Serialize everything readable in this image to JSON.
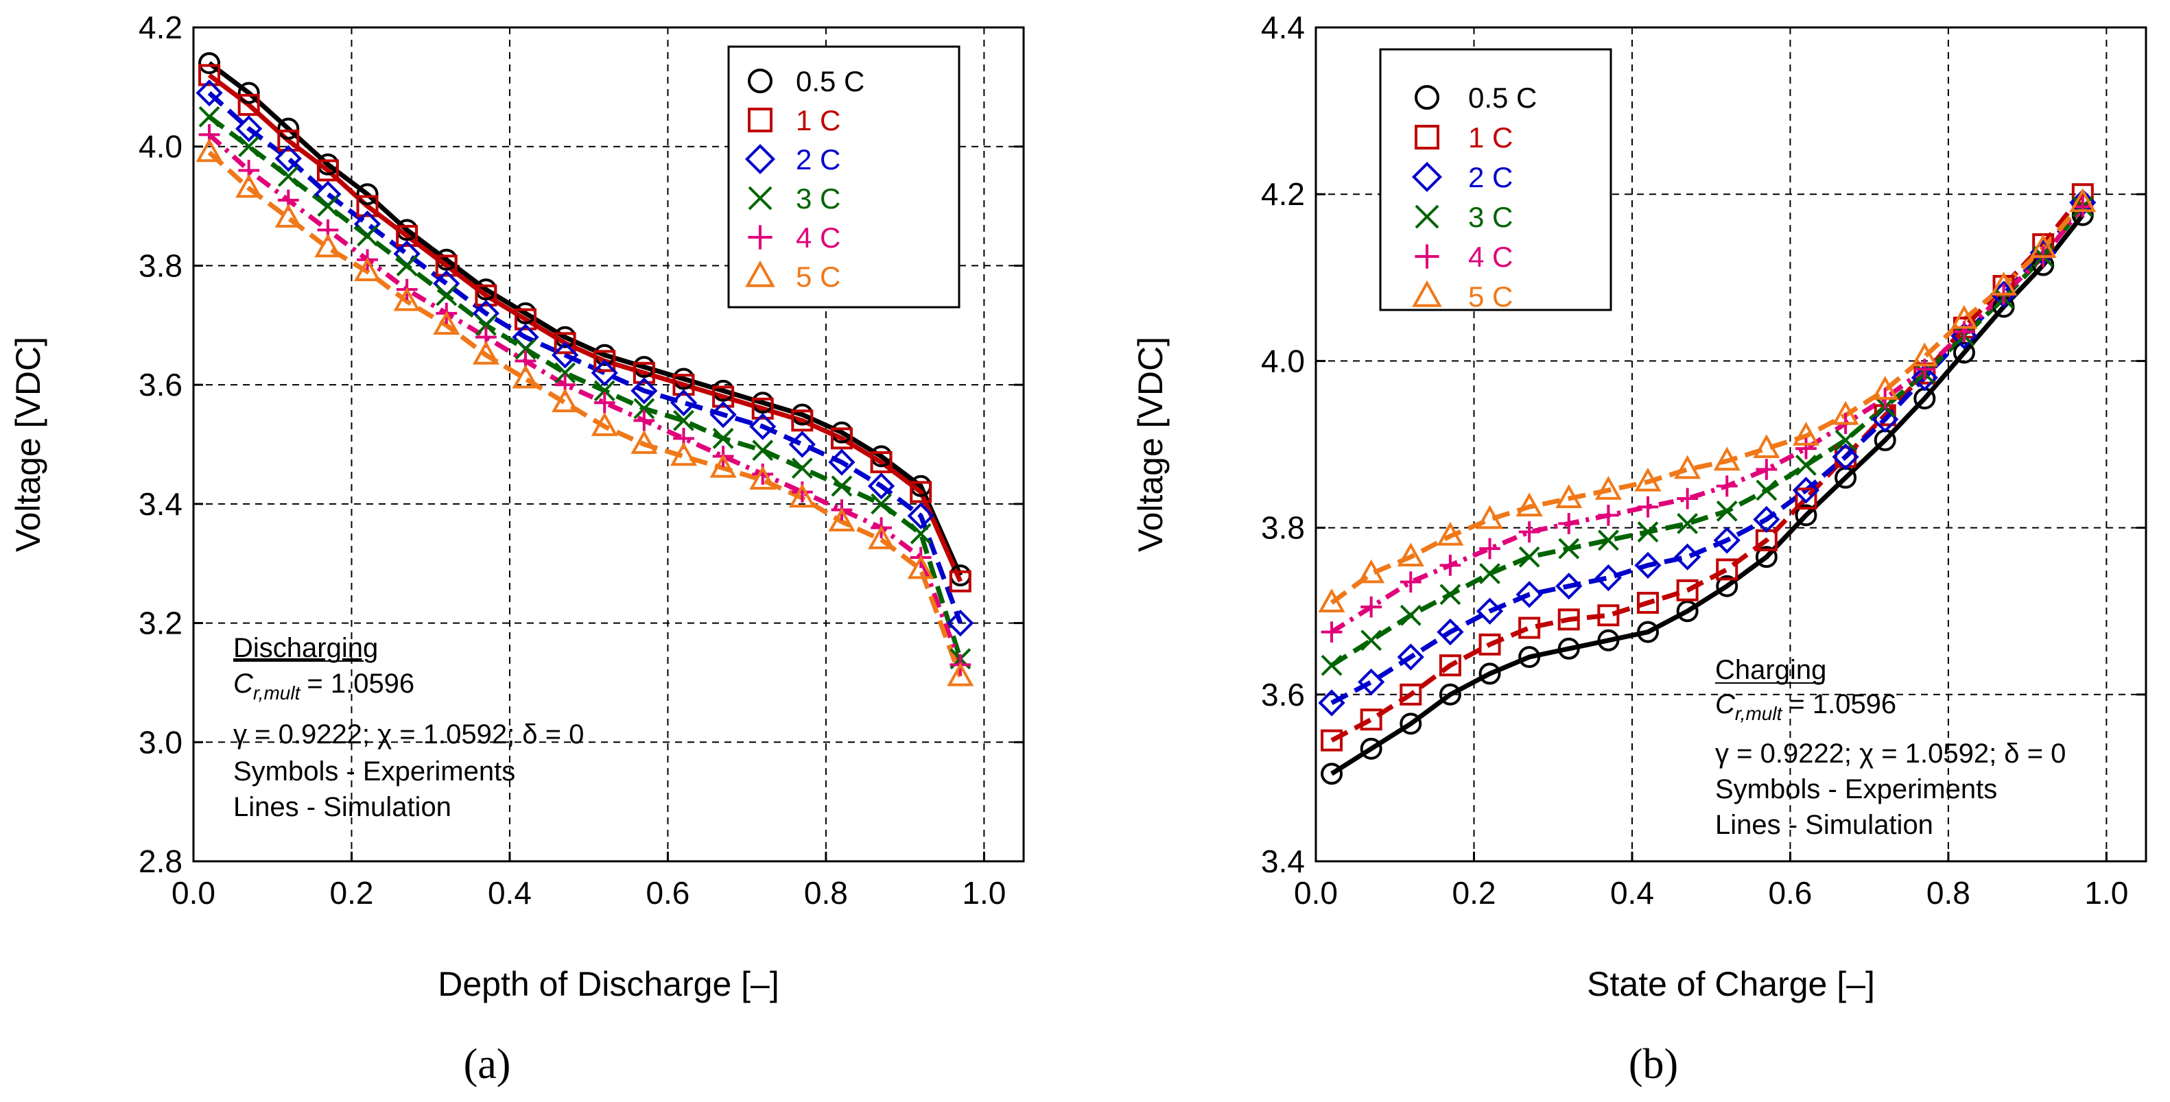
{
  "chart_data": [
    {
      "type": "line",
      "panel_label": "(a)",
      "xlabel": "Depth of Discharge [–]",
      "ylabel": "Voltage [VDC]",
      "xlim": [
        0,
        1.05
      ],
      "ylim": [
        2.8,
        4.2
      ],
      "x_ticks": [
        0,
        0.2,
        0.4,
        0.6,
        0.8,
        1.0
      ],
      "x_tick_labels": [
        "0.0",
        "0.2",
        "0.4",
        "0.6",
        "0.8",
        "1.0"
      ],
      "y_ticks": [
        2.8,
        3.0,
        3.2,
        3.4,
        3.6,
        3.8,
        4.0,
        4.2
      ],
      "y_tick_labels": [
        "2.8",
        "3.0",
        "3.2",
        "3.4",
        "3.6",
        "3.8",
        "4.0",
        "4.2"
      ],
      "grid": true,
      "legend_position": "top-right",
      "annotation": {
        "title": "Discharging",
        "cr_symbol": "C",
        "cr_subscript": "r,mult",
        "cr_value": "= 1.0596",
        "params": "γ = 0.9222;  χ = 1.0592;  δ = 0",
        "line1": "Symbols - Experiments",
        "line2": "Lines - Simulation"
      },
      "series": [
        {
          "name": "0.5 C",
          "color": "#000000",
          "marker": "circle",
          "line_style": "solid",
          "x": [
            0.02,
            0.07,
            0.12,
            0.17,
            0.22,
            0.27,
            0.32,
            0.37,
            0.42,
            0.47,
            0.52,
            0.57,
            0.62,
            0.67,
            0.72,
            0.77,
            0.82,
            0.87,
            0.92,
            0.97
          ],
          "y": [
            4.14,
            4.09,
            4.03,
            3.97,
            3.92,
            3.86,
            3.81,
            3.76,
            3.72,
            3.68,
            3.65,
            3.63,
            3.61,
            3.59,
            3.57,
            3.55,
            3.52,
            3.48,
            3.43,
            3.28
          ]
        },
        {
          "name": "1 C",
          "color": "#c00000",
          "marker": "square",
          "line_style": "solid",
          "x": [
            0.02,
            0.07,
            0.12,
            0.17,
            0.22,
            0.27,
            0.32,
            0.37,
            0.42,
            0.47,
            0.52,
            0.57,
            0.62,
            0.67,
            0.72,
            0.77,
            0.82,
            0.87,
            0.92,
            0.97
          ],
          "y": [
            4.12,
            4.07,
            4.01,
            3.96,
            3.9,
            3.85,
            3.8,
            3.75,
            3.71,
            3.67,
            3.64,
            3.62,
            3.6,
            3.58,
            3.56,
            3.54,
            3.51,
            3.47,
            3.42,
            3.27
          ]
        },
        {
          "name": "2 C",
          "color": "#0000cc",
          "marker": "diamond",
          "line_style": "dashed",
          "x": [
            0.02,
            0.07,
            0.12,
            0.17,
            0.22,
            0.27,
            0.32,
            0.37,
            0.42,
            0.47,
            0.52,
            0.57,
            0.62,
            0.67,
            0.72,
            0.77,
            0.82,
            0.87,
            0.92,
            0.97
          ],
          "y": [
            4.09,
            4.03,
            3.98,
            3.92,
            3.87,
            3.82,
            3.77,
            3.72,
            3.68,
            3.65,
            3.62,
            3.59,
            3.57,
            3.55,
            3.53,
            3.5,
            3.47,
            3.43,
            3.38,
            3.2
          ]
        },
        {
          "name": "3 C",
          "color": "#006400",
          "marker": "x",
          "line_style": "dashed",
          "x": [
            0.02,
            0.07,
            0.12,
            0.17,
            0.22,
            0.27,
            0.32,
            0.37,
            0.42,
            0.47,
            0.52,
            0.57,
            0.62,
            0.67,
            0.72,
            0.77,
            0.82,
            0.87,
            0.92,
            0.97
          ],
          "y": [
            4.05,
            4.0,
            3.95,
            3.9,
            3.85,
            3.8,
            3.75,
            3.7,
            3.66,
            3.62,
            3.59,
            3.56,
            3.54,
            3.51,
            3.49,
            3.46,
            3.43,
            3.4,
            3.35,
            3.14
          ]
        },
        {
          "name": "4 C",
          "color": "#e0007a",
          "marker": "plus",
          "line_style": "dashdot",
          "x": [
            0.02,
            0.07,
            0.12,
            0.17,
            0.22,
            0.27,
            0.32,
            0.37,
            0.42,
            0.47,
            0.52,
            0.57,
            0.62,
            0.67,
            0.72,
            0.77,
            0.82,
            0.87,
            0.92,
            0.97
          ],
          "y": [
            4.02,
            3.96,
            3.91,
            3.86,
            3.81,
            3.76,
            3.72,
            3.68,
            3.64,
            3.6,
            3.57,
            3.54,
            3.51,
            3.48,
            3.45,
            3.42,
            3.39,
            3.36,
            3.31,
            3.13
          ]
        },
        {
          "name": "5 C",
          "color": "#f07818",
          "marker": "triangle",
          "line_style": "dashed",
          "x": [
            0.02,
            0.07,
            0.12,
            0.17,
            0.22,
            0.27,
            0.32,
            0.37,
            0.42,
            0.47,
            0.52,
            0.57,
            0.62,
            0.67,
            0.72,
            0.77,
            0.82,
            0.87,
            0.92,
            0.97
          ],
          "y": [
            3.99,
            3.93,
            3.88,
            3.83,
            3.79,
            3.74,
            3.7,
            3.65,
            3.61,
            3.57,
            3.53,
            3.5,
            3.48,
            3.46,
            3.44,
            3.41,
            3.37,
            3.34,
            3.29,
            3.11
          ]
        }
      ]
    },
    {
      "type": "line",
      "panel_label": "(b)",
      "xlabel": "State of Charge [–]",
      "ylabel": "Voltage [VDC]",
      "xlim": [
        0,
        1.05
      ],
      "ylim": [
        3.4,
        4.4
      ],
      "x_ticks": [
        0,
        0.2,
        0.4,
        0.6,
        0.8,
        1.0
      ],
      "x_tick_labels": [
        "0.0",
        "0.2",
        "0.4",
        "0.6",
        "0.8",
        "1.0"
      ],
      "y_ticks": [
        3.4,
        3.6,
        3.8,
        4.0,
        4.2,
        4.4
      ],
      "y_tick_labels": [
        "3.4",
        "3.6",
        "3.8",
        "4.0",
        "4.2",
        "4.4"
      ],
      "grid": true,
      "legend_position": "top-left",
      "annotation": {
        "title": "Charging",
        "cr_symbol": "C",
        "cr_subscript": "r,mult",
        "cr_value": "= 1.0596",
        "params": "γ = 0.9222;  χ = 1.0592;  δ = 0",
        "line1": "Symbols - Experiments",
        "line2": "Lines - Simulation"
      },
      "series": [
        {
          "name": "0.5 C",
          "color": "#000000",
          "marker": "circle",
          "line_style": "solid",
          "x": [
            0.02,
            0.07,
            0.12,
            0.17,
            0.22,
            0.27,
            0.32,
            0.37,
            0.42,
            0.47,
            0.52,
            0.57,
            0.62,
            0.67,
            0.72,
            0.77,
            0.82,
            0.87,
            0.92,
            0.97
          ],
          "y": [
            3.505,
            3.535,
            3.565,
            3.6,
            3.625,
            3.645,
            3.655,
            3.665,
            3.675,
            3.7,
            3.73,
            3.765,
            3.815,
            3.86,
            3.905,
            3.955,
            4.01,
            4.065,
            4.115,
            4.175
          ]
        },
        {
          "name": "1 C",
          "color": "#c00000",
          "marker": "square",
          "line_style": "dashed",
          "x": [
            0.02,
            0.07,
            0.12,
            0.17,
            0.22,
            0.27,
            0.32,
            0.37,
            0.42,
            0.47,
            0.52,
            0.57,
            0.62,
            0.67,
            0.72,
            0.77,
            0.82,
            0.87,
            0.92,
            0.97
          ],
          "y": [
            3.545,
            3.57,
            3.6,
            3.635,
            3.66,
            3.68,
            3.69,
            3.695,
            3.71,
            3.725,
            3.75,
            3.785,
            3.835,
            3.885,
            3.935,
            3.985,
            4.04,
            4.09,
            4.14,
            4.2
          ]
        },
        {
          "name": "2 C",
          "color": "#0000cc",
          "marker": "diamond",
          "line_style": "dashed",
          "x": [
            0.02,
            0.07,
            0.12,
            0.17,
            0.22,
            0.27,
            0.32,
            0.37,
            0.42,
            0.47,
            0.52,
            0.57,
            0.62,
            0.67,
            0.72,
            0.77,
            0.82,
            0.87,
            0.92,
            0.97
          ],
          "y": [
            3.59,
            3.615,
            3.645,
            3.675,
            3.7,
            3.72,
            3.73,
            3.74,
            3.755,
            3.765,
            3.785,
            3.81,
            3.845,
            3.885,
            3.93,
            3.98,
            4.03,
            4.08,
            4.13,
            4.19
          ]
        },
        {
          "name": "3 C",
          "color": "#006400",
          "marker": "x",
          "line_style": "dashed",
          "x": [
            0.02,
            0.07,
            0.12,
            0.17,
            0.22,
            0.27,
            0.32,
            0.37,
            0.42,
            0.47,
            0.52,
            0.57,
            0.62,
            0.67,
            0.72,
            0.77,
            0.82,
            0.87,
            0.92,
            0.97
          ],
          "y": [
            3.635,
            3.665,
            3.695,
            3.72,
            3.745,
            3.765,
            3.775,
            3.785,
            3.795,
            3.805,
            3.82,
            3.845,
            3.875,
            3.905,
            3.945,
            3.985,
            4.03,
            4.075,
            4.125,
            4.185
          ]
        },
        {
          "name": "4 C",
          "color": "#e0007a",
          "marker": "plus",
          "line_style": "dashdot",
          "x": [
            0.02,
            0.07,
            0.12,
            0.17,
            0.22,
            0.27,
            0.32,
            0.37,
            0.42,
            0.47,
            0.52,
            0.57,
            0.62,
            0.67,
            0.72,
            0.77,
            0.82,
            0.87,
            0.92,
            0.97
          ],
          "y": [
            3.675,
            3.705,
            3.735,
            3.755,
            3.775,
            3.795,
            3.805,
            3.815,
            3.825,
            3.835,
            3.85,
            3.87,
            3.895,
            3.925,
            3.955,
            3.99,
            4.035,
            4.08,
            4.125,
            4.185
          ]
        },
        {
          "name": "5 C",
          "color": "#f07818",
          "marker": "triangle",
          "line_style": "dashed",
          "x": [
            0.02,
            0.07,
            0.12,
            0.17,
            0.22,
            0.27,
            0.32,
            0.37,
            0.42,
            0.47,
            0.52,
            0.57,
            0.62,
            0.67,
            0.72,
            0.77,
            0.82,
            0.87,
            0.92,
            0.97
          ],
          "y": [
            3.71,
            3.745,
            3.765,
            3.79,
            3.81,
            3.825,
            3.835,
            3.845,
            3.855,
            3.87,
            3.88,
            3.895,
            3.91,
            3.935,
            3.965,
            4.005,
            4.05,
            4.09,
            4.135,
            4.19
          ]
        }
      ]
    }
  ]
}
